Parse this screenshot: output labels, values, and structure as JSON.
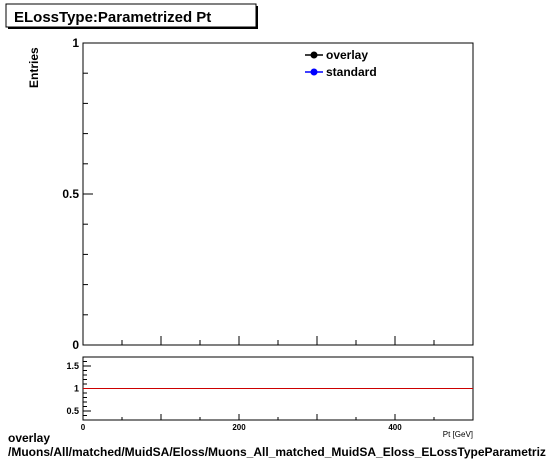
{
  "title": "ELossType:Parametrized Pt",
  "footer": {
    "line1": "overlay",
    "line2": "/Muons/All/matched/MuidSA/Eloss/Muons_All_matched_MuidSA_Eloss_ELossTypeParametrized_Pt"
  },
  "colors": {
    "overlay": "#000000",
    "standard": "#0000ff",
    "ratio_line": "#cc0000",
    "frame": "#000000",
    "background": "#ffffff"
  },
  "chart_data": [
    {
      "type": "line",
      "title": "ELossType:Parametrized Pt",
      "ylabel": "Entries",
      "xlabel": "Pt [GeV]",
      "xlim": [
        0,
        500
      ],
      "ylim": [
        0,
        1
      ],
      "y_tick_labels": [
        "0",
        "0.5",
        "1"
      ],
      "legend": {
        "placement": "top-right",
        "entries": [
          "overlay",
          "standard"
        ]
      },
      "series": [
        {
          "name": "overlay",
          "x": [],
          "y": []
        },
        {
          "name": "standard",
          "x": [],
          "y": []
        }
      ],
      "grid": false
    },
    {
      "type": "line",
      "xlim": [
        0,
        500
      ],
      "ylim": [
        0.3,
        1.7
      ],
      "x_tick_labels": [
        "0",
        "200",
        "400"
      ],
      "y_tick_labels": [
        "0.5",
        "1",
        "1.5"
      ],
      "reference_line": 1,
      "grid": false
    }
  ]
}
